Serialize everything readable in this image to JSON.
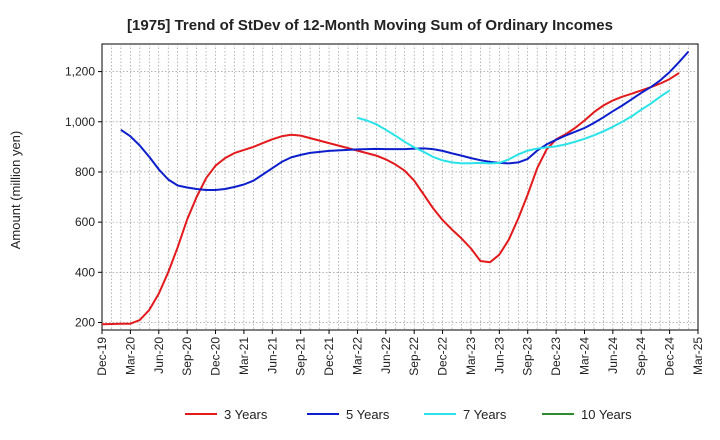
{
  "chart_data": {
    "type": "line",
    "title": "[1975]  Trend of StDev of 12-Month Moving Sum of Ordinary Incomes",
    "xlabel": "",
    "ylabel": "Amount (million yen)",
    "ylim": [
      170,
      1310
    ],
    "yticks": [
      200,
      400,
      600,
      800,
      1000,
      1200
    ],
    "ytick_labels": [
      "200",
      "400",
      "600",
      "800",
      "1,000",
      "1,200"
    ],
    "x_tick_labels": [
      "Dec-19",
      "Mar-20",
      "Jun-20",
      "Sep-20",
      "Dec-20",
      "Mar-21",
      "Jun-21",
      "Sep-21",
      "Dec-21",
      "Mar-22",
      "Jun-22",
      "Sep-22",
      "Dec-22",
      "Mar-23",
      "Jun-23",
      "Sep-23",
      "Dec-23",
      "Mar-24",
      "Jun-24",
      "Sep-24",
      "Dec-24",
      "Mar-25"
    ],
    "x_start": "Dec-19",
    "months_span": 63,
    "grid": true,
    "legend_position": "bottom",
    "series": [
      {
        "name": "3 Years",
        "color": "#e31a1c",
        "start_month": 0,
        "values": [
          193,
          194,
          195,
          195,
          210,
          250,
          315,
          400,
          500,
          610,
          700,
          775,
          825,
          855,
          875,
          888,
          900,
          915,
          930,
          942,
          948,
          945,
          935,
          925,
          915,
          905,
          895,
          885,
          875,
          865,
          850,
          830,
          805,
          765,
          710,
          655,
          608,
          570,
          535,
          495,
          445,
          440,
          470,
          530,
          615,
          710,
          815,
          890,
          930,
          950,
          975,
          1005,
          1038,
          1065,
          1085,
          1100,
          1112,
          1125,
          1138,
          1152,
          1170,
          1195
        ]
      },
      {
        "name": "5 Years",
        "color": "#0d1fcc",
        "start_month": 2,
        "values": [
          968,
          942,
          905,
          860,
          810,
          770,
          746,
          738,
          732,
          728,
          728,
          732,
          740,
          750,
          765,
          790,
          815,
          840,
          858,
          868,
          876,
          880,
          884,
          886,
          888,
          890,
          891,
          892,
          891,
          891,
          891,
          893,
          894,
          891,
          884,
          874,
          865,
          855,
          847,
          840,
          836,
          834,
          838,
          852,
          885,
          910,
          928,
          945,
          960,
          975,
          995,
          1018,
          1042,
          1065,
          1090,
          1115,
          1138,
          1165,
          1198,
          1238,
          1280
        ]
      },
      {
        "name": "7 Years",
        "color": "#29e3e8",
        "start_month": 27,
        "values": [
          1016,
          1005,
          990,
          968,
          945,
          920,
          898,
          880,
          860,
          846,
          838,
          834,
          835,
          836,
          834,
          836,
          850,
          870,
          885,
          893,
          898,
          902,
          910,
          920,
          932,
          946,
          962,
          980,
          1000,
          1022,
          1048,
          1072,
          1100,
          1125
        ]
      },
      {
        "name": "10 Years",
        "color": "#2e8b2e",
        "start_month": 0,
        "values": []
      }
    ]
  }
}
